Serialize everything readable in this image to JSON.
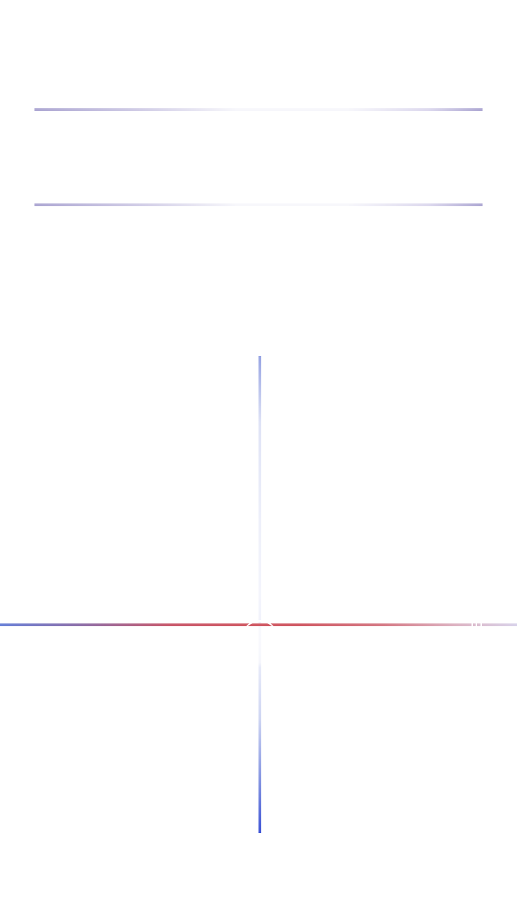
{
  "colors": {
    "background": "#ffffff",
    "divider_purple": "#aea8d3",
    "vertical_blue": "#3f55d6",
    "horizontal_red": "#d05a64",
    "horizontal_blue": "#6a82d8"
  }
}
